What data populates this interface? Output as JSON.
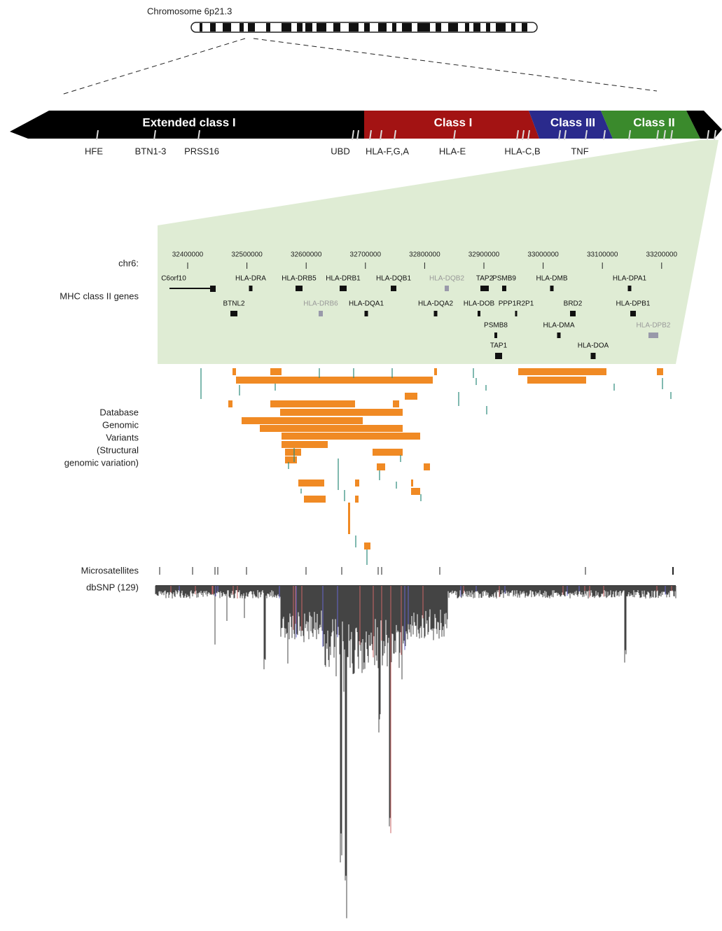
{
  "chromosome": {
    "label": "Chromosome 6p21.3"
  },
  "regions": [
    "Extended class I",
    "Class I",
    "Class III",
    "Class II"
  ],
  "region_genes": [
    "HFE",
    "BTN1-3",
    "PRSS16",
    "UBD",
    "HLA-F,G,A",
    "HLA-E",
    "HLA-C,B",
    "TNF"
  ],
  "tracks": {
    "coordinate_label": "chr6:",
    "genes_label": "MHC class II genes",
    "variants_label": [
      "Database",
      "Genomic",
      "Variants",
      "(Structural",
      "genomic variation)"
    ],
    "microsatellites_label": "Microsatellites",
    "dbsnp_label": "dbSNP (129)"
  },
  "coordinates": [
    32400000,
    32500000,
    32600000,
    32700000,
    32800000,
    32900000,
    33000000,
    33100000,
    33200000
  ],
  "genes": [
    "C6orf10",
    "HLA-DRA",
    "HLA-DRB5",
    "HLA-DRB1",
    "HLA-DQB1",
    "HLA-DQB2",
    "TAP2",
    "PSMB9",
    "HLA-DMB",
    "HLA-DPA1",
    "BTNL2",
    "HLA-DRB6",
    "HLA-DQA1",
    "HLA-DQA2",
    "HLA-DOB",
    "PPP1R2P1",
    "BRD2",
    "HLA-DPB1",
    "PSMB8",
    "HLA-DMA",
    "HLA-DPB2",
    "TAP1",
    "HLA-DOA"
  ]
}
